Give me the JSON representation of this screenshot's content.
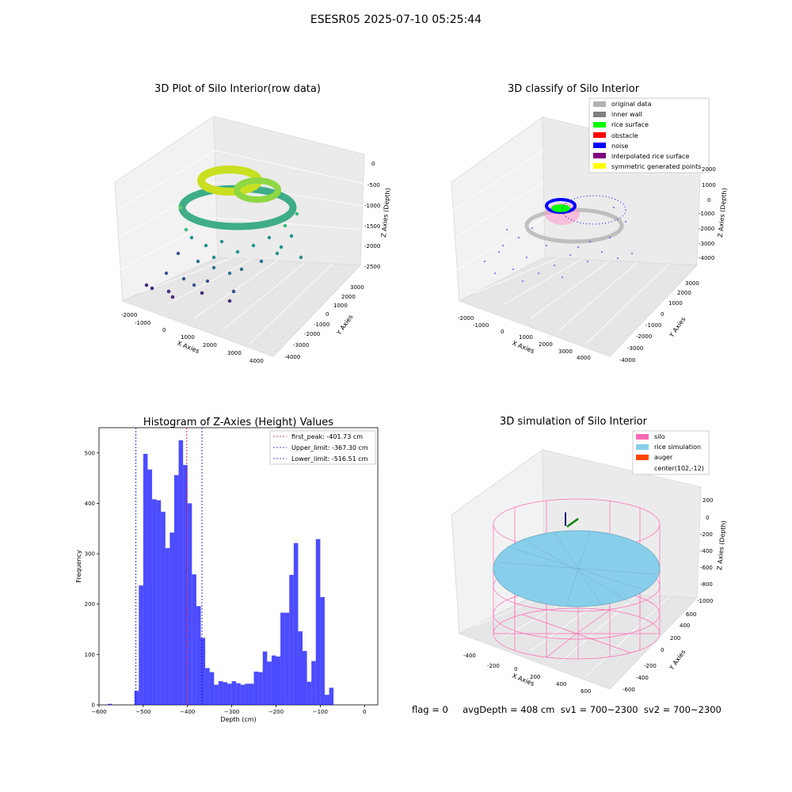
{
  "suptitle": "ESESR05 2025-07-10 05:25:44",
  "status_line": "flag = 0     avgDepth = 408 cm  sv1 = 700~2300  sv2 = 700~2300",
  "chart_data": [
    {
      "type": "scatter",
      "projection": "3d",
      "title": "3D Plot of Silo Interior(row data)",
      "xlabel": "X Axies",
      "ylabel": "Y Axies",
      "zlabel": "Z Axies (Depth)",
      "xticks": [
        "-2000",
        "-1000",
        "0",
        "1000",
        "2000",
        "3000",
        "4000"
      ],
      "yticks": [
        "-4000",
        "-3000",
        "-2000",
        "-1000",
        "0",
        "1000",
        "2000",
        "3000"
      ],
      "zticks": [
        "0",
        "-500",
        "-1000",
        "-1500",
        "-2000",
        "-2500"
      ],
      "colormap": "viridis"
    },
    {
      "type": "scatter",
      "projection": "3d",
      "title": "3D classify of Silo Interior",
      "xlabel": "X Axies",
      "ylabel": "Y Axies",
      "zlabel": "Z Axies (Depth)",
      "xticks": [
        "-2000",
        "-1000",
        "0",
        "1000",
        "2000",
        "3000",
        "4000"
      ],
      "yticks": [
        "-4000",
        "-3000",
        "-2000",
        "-1000",
        "0",
        "1000",
        "2000",
        "3000"
      ],
      "zticks": [
        "2000",
        "1000",
        "0",
        "-1000",
        "-2000",
        "-3000",
        "-4000"
      ],
      "legend": [
        {
          "name": "original data",
          "color": "#b3b3b3"
        },
        {
          "name": "inner wall",
          "color": "#808080"
        },
        {
          "name": "rice surface",
          "color": "#00ff00"
        },
        {
          "name": "obstacle",
          "color": "#ff0000"
        },
        {
          "name": "noise",
          "color": "#0000ff"
        },
        {
          "name": "interpolated rice surface",
          "color": "#800080"
        },
        {
          "name": "symmetric generated points",
          "color": "#ffff00"
        }
      ],
      "legend_position": "upper-right"
    },
    {
      "type": "bar",
      "title": "Histogram of Z-Axies (Height) Values",
      "xlabel": "Depth (cm)",
      "ylabel": "Frequency",
      "xlim": [
        -600,
        30
      ],
      "ylim": [
        0,
        550
      ],
      "xticks": [
        -600,
        -500,
        -400,
        -300,
        -200,
        -100,
        0
      ],
      "yticks": [
        0,
        100,
        200,
        300,
        400,
        500
      ],
      "bar_color": "#0000ff",
      "bin_width": 10,
      "bins": [
        {
          "x": -575,
          "v": 2
        },
        {
          "x": -515,
          "v": 28
        },
        {
          "x": -505,
          "v": 237
        },
        {
          "x": -495,
          "v": 498
        },
        {
          "x": -485,
          "v": 467
        },
        {
          "x": -475,
          "v": 408
        },
        {
          "x": -465,
          "v": 406
        },
        {
          "x": -455,
          "v": 383
        },
        {
          "x": -445,
          "v": 311
        },
        {
          "x": -435,
          "v": 342
        },
        {
          "x": -425,
          "v": 456
        },
        {
          "x": -415,
          "v": 525
        },
        {
          "x": -405,
          "v": 476
        },
        {
          "x": -395,
          "v": 400
        },
        {
          "x": -385,
          "v": 259
        },
        {
          "x": -375,
          "v": 196
        },
        {
          "x": -365,
          "v": 133
        },
        {
          "x": -355,
          "v": 73
        },
        {
          "x": -345,
          "v": 65
        },
        {
          "x": -335,
          "v": 40
        },
        {
          "x": -325,
          "v": 47
        },
        {
          "x": -315,
          "v": 45
        },
        {
          "x": -305,
          "v": 42
        },
        {
          "x": -295,
          "v": 47
        },
        {
          "x": -285,
          "v": 43
        },
        {
          "x": -275,
          "v": 40
        },
        {
          "x": -265,
          "v": 42
        },
        {
          "x": -255,
          "v": 42
        },
        {
          "x": -245,
          "v": 66
        },
        {
          "x": -235,
          "v": 65
        },
        {
          "x": -225,
          "v": 106
        },
        {
          "x": -215,
          "v": 86
        },
        {
          "x": -205,
          "v": 98
        },
        {
          "x": -195,
          "v": 96
        },
        {
          "x": -185,
          "v": 183
        },
        {
          "x": -175,
          "v": 183
        },
        {
          "x": -165,
          "v": 258
        },
        {
          "x": -155,
          "v": 321
        },
        {
          "x": -145,
          "v": 146
        },
        {
          "x": -135,
          "v": 107
        },
        {
          "x": -125,
          "v": 46
        },
        {
          "x": -115,
          "v": 87
        },
        {
          "x": -105,
          "v": 329
        },
        {
          "x": -95,
          "v": 214
        },
        {
          "x": -85,
          "v": 20
        },
        {
          "x": -75,
          "v": 34
        }
      ],
      "vlines": [
        {
          "label": "first_peak: -401.73 cm",
          "x": -401.73,
          "color": "#ff0000"
        },
        {
          "label": "Upper_limit: -367.30 cm",
          "x": -367.3,
          "color": "#0000ff"
        },
        {
          "label": "Lower_limit: -516.51 cm",
          "x": -516.51,
          "color": "#0000ff"
        }
      ],
      "legend_position": "upper-right"
    },
    {
      "type": "surface",
      "projection": "3d",
      "title": "3D simulation of Silo Interior",
      "xlabel": "X Axies",
      "ylabel": "Y Axies",
      "zlabel": "Z Axies (Depth)",
      "xticks": [
        "-400",
        "-200",
        "0",
        "200",
        "400",
        "600"
      ],
      "yticks": [
        "-600",
        "-400",
        "-200",
        "0",
        "200",
        "400",
        "600"
      ],
      "zticks": [
        "200",
        "0",
        "-200",
        "-400",
        "-600",
        "-800",
        "-1000"
      ],
      "legend": [
        {
          "name": "silo",
          "color": "#ff69b4"
        },
        {
          "name": "rice simulation",
          "color": "#87ceeb"
        },
        {
          "name": "auger",
          "color": "#ff4500"
        },
        {
          "name": "center(102,-12)",
          "color": ""
        }
      ],
      "legend_position": "upper-right"
    }
  ]
}
